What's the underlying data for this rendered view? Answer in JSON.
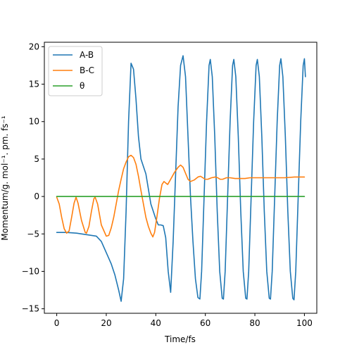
{
  "chart_data": {
    "type": "line",
    "xlabel": "Time/fs",
    "ylabel": "Momentum/g. mol⁻¹. pm. fs⁻¹",
    "xlim": [
      -5,
      105
    ],
    "ylim": [
      -15.6,
      20.6
    ],
    "xticks": [
      0,
      20,
      40,
      60,
      80,
      100
    ],
    "yticks": [
      -15,
      -10,
      -5,
      0,
      5,
      10,
      15,
      20
    ],
    "grid": false,
    "legend_position": "top-left",
    "series": [
      {
        "name": "A-B",
        "color": "#1f77b4",
        "points": [
          [
            0,
            -4.8
          ],
          [
            4,
            -4.8
          ],
          [
            8,
            -4.9
          ],
          [
            12,
            -5.1
          ],
          [
            16,
            -5.3
          ],
          [
            18,
            -6
          ],
          [
            20,
            -7.5
          ],
          [
            22,
            -9
          ],
          [
            23.5,
            -10.5
          ],
          [
            25,
            -12.5
          ],
          [
            26,
            -14
          ],
          [
            27,
            -11
          ],
          [
            28,
            -2
          ],
          [
            29,
            10
          ],
          [
            30,
            17.8
          ],
          [
            31,
            17
          ],
          [
            32,
            13
          ],
          [
            33,
            8
          ],
          [
            34,
            5
          ],
          [
            36,
            3
          ],
          [
            38,
            -1
          ],
          [
            40,
            -3
          ],
          [
            41,
            -3.8
          ],
          [
            42,
            -3.8
          ],
          [
            43,
            -3.9
          ],
          [
            44,
            -5.5
          ],
          [
            45,
            -10
          ],
          [
            46,
            -12.8
          ],
          [
            47,
            -6
          ],
          [
            48,
            3
          ],
          [
            49,
            12
          ],
          [
            50,
            17.5
          ],
          [
            51,
            18.8
          ],
          [
            52,
            16
          ],
          [
            53,
            8
          ],
          [
            54,
            0
          ],
          [
            55,
            -6
          ],
          [
            56,
            -11
          ],
          [
            57,
            -13.5
          ],
          [
            57.8,
            -13.7
          ],
          [
            58.5,
            -10
          ],
          [
            59.5,
            0
          ],
          [
            60.5,
            10
          ],
          [
            61.5,
            17.5
          ],
          [
            62,
            18.3
          ],
          [
            62.8,
            16
          ],
          [
            63.8,
            8
          ],
          [
            64.8,
            -2
          ],
          [
            65.8,
            -10
          ],
          [
            66.8,
            -13.6
          ],
          [
            67.3,
            -13.7
          ],
          [
            68,
            -10
          ],
          [
            69,
            0
          ],
          [
            70,
            10
          ],
          [
            71,
            17.5
          ],
          [
            71.5,
            18.3
          ],
          [
            72.3,
            16
          ],
          [
            73.3,
            8
          ],
          [
            74.3,
            -2
          ],
          [
            75.3,
            -10
          ],
          [
            76.3,
            -13.6
          ],
          [
            76.8,
            -13.7
          ],
          [
            77.5,
            -10
          ],
          [
            78.5,
            0
          ],
          [
            79.5,
            10
          ],
          [
            80.5,
            17.5
          ],
          [
            81,
            18.3
          ],
          [
            81.8,
            16
          ],
          [
            82.8,
            8
          ],
          [
            83.8,
            -2
          ],
          [
            84.8,
            -10
          ],
          [
            85.8,
            -13.6
          ],
          [
            86.3,
            -13.7
          ],
          [
            87,
            -10
          ],
          [
            88,
            0
          ],
          [
            89,
            10
          ],
          [
            90,
            17.5
          ],
          [
            90.5,
            18.4
          ],
          [
            91.3,
            16
          ],
          [
            92.3,
            8
          ],
          [
            93.3,
            -2
          ],
          [
            94.3,
            -10
          ],
          [
            95.3,
            -13.6
          ],
          [
            95.8,
            -13.8
          ],
          [
            96.5,
            -10
          ],
          [
            97.5,
            0
          ],
          [
            98.5,
            10
          ],
          [
            99.5,
            17.5
          ],
          [
            100,
            18.4
          ],
          [
            100.4,
            16
          ]
        ]
      },
      {
        "name": "B-C",
        "color": "#ff7f0e",
        "points": [
          [
            0,
            -0.1
          ],
          [
            1,
            -1
          ],
          [
            2,
            -2.8
          ],
          [
            3,
            -4.3
          ],
          [
            4,
            -4.9
          ],
          [
            5,
            -4.6
          ],
          [
            6,
            -2.8
          ],
          [
            7,
            -0.9
          ],
          [
            7.8,
            -0.1
          ],
          [
            8.6,
            -0.9
          ],
          [
            10,
            -3.2
          ],
          [
            11.5,
            -4.8
          ],
          [
            12,
            -4.9
          ],
          [
            13,
            -4
          ],
          [
            14,
            -2
          ],
          [
            15,
            -0.3
          ],
          [
            15.5,
            -0.1
          ],
          [
            16.5,
            -1
          ],
          [
            18,
            -3.8
          ],
          [
            20,
            -5.3
          ],
          [
            21,
            -5.2
          ],
          [
            22,
            -4.2
          ],
          [
            23,
            -2.8
          ],
          [
            24,
            -1
          ],
          [
            25,
            0.8
          ],
          [
            26,
            2.3
          ],
          [
            27,
            3.7
          ],
          [
            28,
            4.6
          ],
          [
            29,
            5.3
          ],
          [
            30,
            5.5
          ],
          [
            31,
            5.2
          ],
          [
            32,
            4.3
          ],
          [
            33,
            2.7
          ],
          [
            34,
            0.8
          ],
          [
            35,
            -1
          ],
          [
            36,
            -2.8
          ],
          [
            37,
            -4
          ],
          [
            38,
            -4.9
          ],
          [
            38.8,
            -5.4
          ],
          [
            39.5,
            -4.8
          ],
          [
            40.5,
            -2.6
          ],
          [
            41.5,
            -0.2
          ],
          [
            42.5,
            1.6
          ],
          [
            43.3,
            2
          ],
          [
            44,
            1.8
          ],
          [
            44.8,
            1.6
          ],
          [
            46,
            2.3
          ],
          [
            47.5,
            3.2
          ],
          [
            49,
            3.9
          ],
          [
            50,
            4.2
          ],
          [
            51,
            3.9
          ],
          [
            52,
            3.1
          ],
          [
            53,
            2.3
          ],
          [
            54,
            2
          ],
          [
            55.5,
            2.2
          ],
          [
            57,
            2.6
          ],
          [
            58,
            2.7
          ],
          [
            59,
            2.5
          ],
          [
            60,
            2.3
          ],
          [
            61,
            2.3
          ],
          [
            62.5,
            2.5
          ],
          [
            64,
            2.6
          ],
          [
            65,
            2.5
          ],
          [
            66,
            2.3
          ],
          [
            67,
            2.3
          ],
          [
            68.5,
            2.5
          ],
          [
            70,
            2.5
          ],
          [
            72,
            2.4
          ],
          [
            74,
            2.4
          ],
          [
            76,
            2.4
          ],
          [
            78,
            2.5
          ],
          [
            80,
            2.5
          ],
          [
            84,
            2.5
          ],
          [
            88,
            2.5
          ],
          [
            92,
            2.5
          ],
          [
            96,
            2.6
          ],
          [
            100,
            2.6
          ]
        ]
      },
      {
        "name": "θ",
        "color": "#2ca02c",
        "points": [
          [
            0,
            0
          ],
          [
            100,
            0
          ]
        ]
      }
    ]
  }
}
